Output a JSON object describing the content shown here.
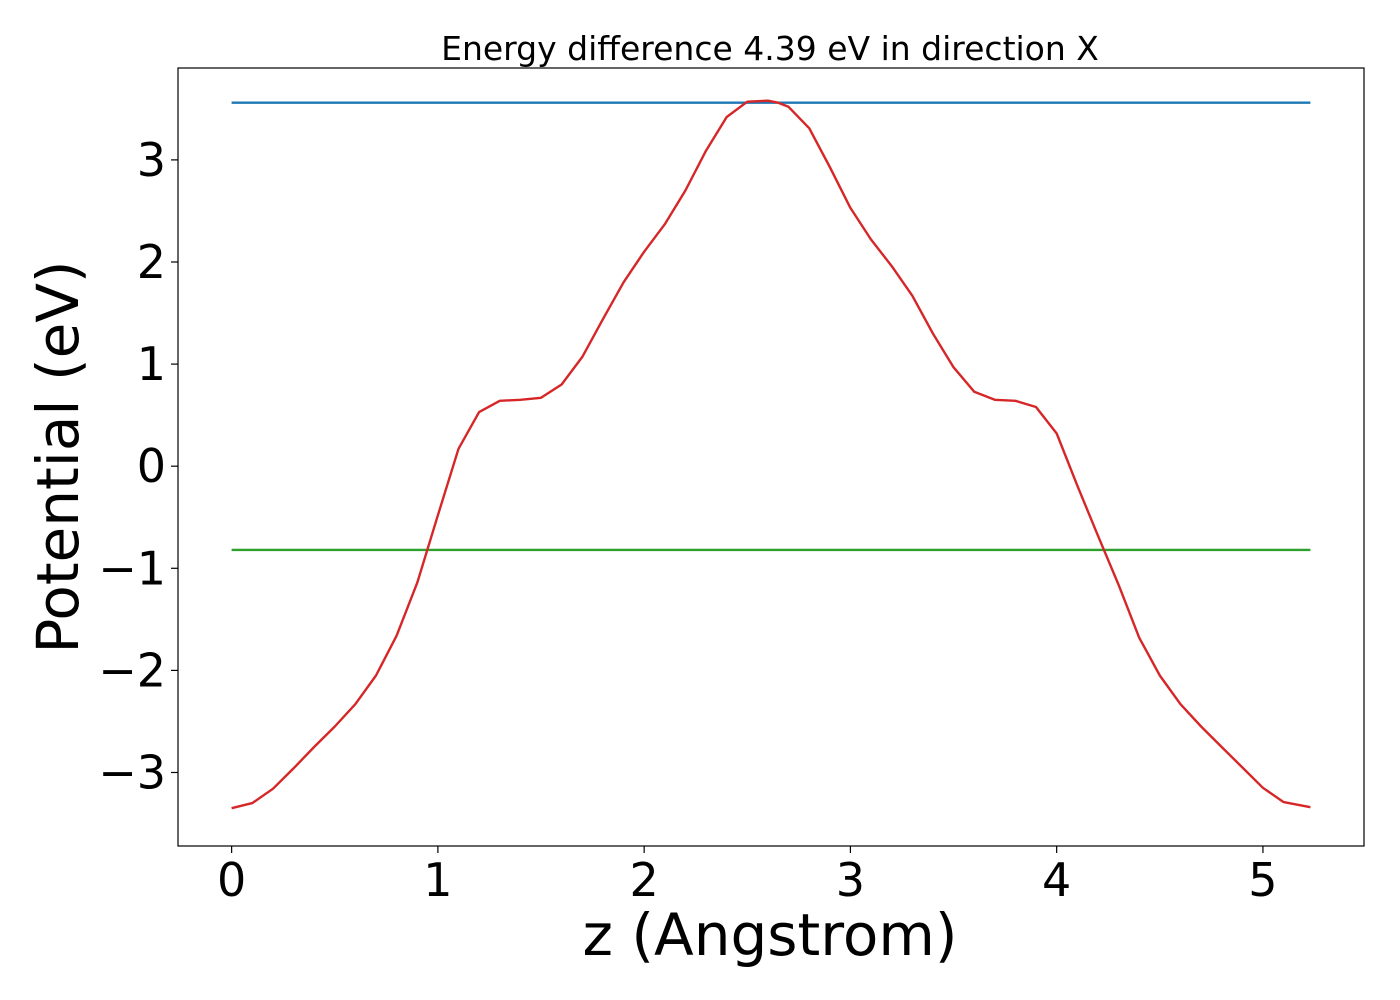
{
  "chart_data": {
    "type": "line",
    "title": "Energy difference 4.39 eV in direction X",
    "xlabel": "z (Angstrom)",
    "ylabel": "Potential (eV)",
    "xlim": [
      -0.26,
      5.49
    ],
    "ylim": [
      -3.72,
      3.9
    ],
    "xticks": [
      0,
      1,
      2,
      3,
      4,
      5
    ],
    "xtick_labels": [
      "0",
      "1",
      "2",
      "3",
      "4",
      "5"
    ],
    "yticks": [
      -3,
      -2,
      -1,
      0,
      1,
      2,
      3
    ],
    "ytick_labels": [
      "−3",
      "−2",
      "−1",
      "0",
      "1",
      "2",
      "3"
    ],
    "grid": false,
    "legend": "none",
    "series": [
      {
        "color": "#1f77b4",
        "x": [
          0,
          5.23
        ],
        "y": [
          3.56,
          3.56
        ]
      },
      {
        "color": "#2ca02c",
        "x": [
          0,
          5.23
        ],
        "y": [
          -0.82,
          -0.82
        ]
      },
      {
        "color": "#d62728",
        "x": [
          0.0,
          0.1,
          0.2,
          0.3,
          0.4,
          0.5,
          0.6,
          0.7,
          0.8,
          0.9,
          1.0,
          1.1,
          1.2,
          1.3,
          1.4,
          1.5,
          1.6,
          1.7,
          1.8,
          1.9,
          2.0,
          2.1,
          2.2,
          2.3,
          2.4,
          2.5,
          2.6,
          2.65,
          2.7,
          2.8,
          2.9,
          3.0,
          3.1,
          3.2,
          3.3,
          3.4,
          3.5,
          3.6,
          3.7,
          3.8,
          3.9,
          4.0,
          4.1,
          4.2,
          4.3,
          4.4,
          4.5,
          4.6,
          4.7,
          4.8,
          4.9,
          5.0,
          5.1,
          5.23
        ],
        "y": [
          -3.35,
          -3.3,
          -3.16,
          -2.96,
          -2.75,
          -2.55,
          -2.33,
          -2.05,
          -1.66,
          -1.14,
          -0.48,
          0.17,
          0.53,
          0.64,
          0.65,
          0.67,
          0.8,
          1.07,
          1.44,
          1.8,
          2.1,
          2.37,
          2.7,
          3.09,
          3.42,
          3.57,
          3.58,
          3.56,
          3.52,
          3.31,
          2.93,
          2.53,
          2.22,
          1.96,
          1.67,
          1.3,
          0.97,
          0.73,
          0.65,
          0.64,
          0.58,
          0.32,
          -0.19,
          -0.68,
          -1.16,
          -1.68,
          -2.05,
          -2.33,
          -2.55,
          -2.75,
          -2.95,
          -3.15,
          -3.29,
          -3.34
        ]
      }
    ]
  }
}
